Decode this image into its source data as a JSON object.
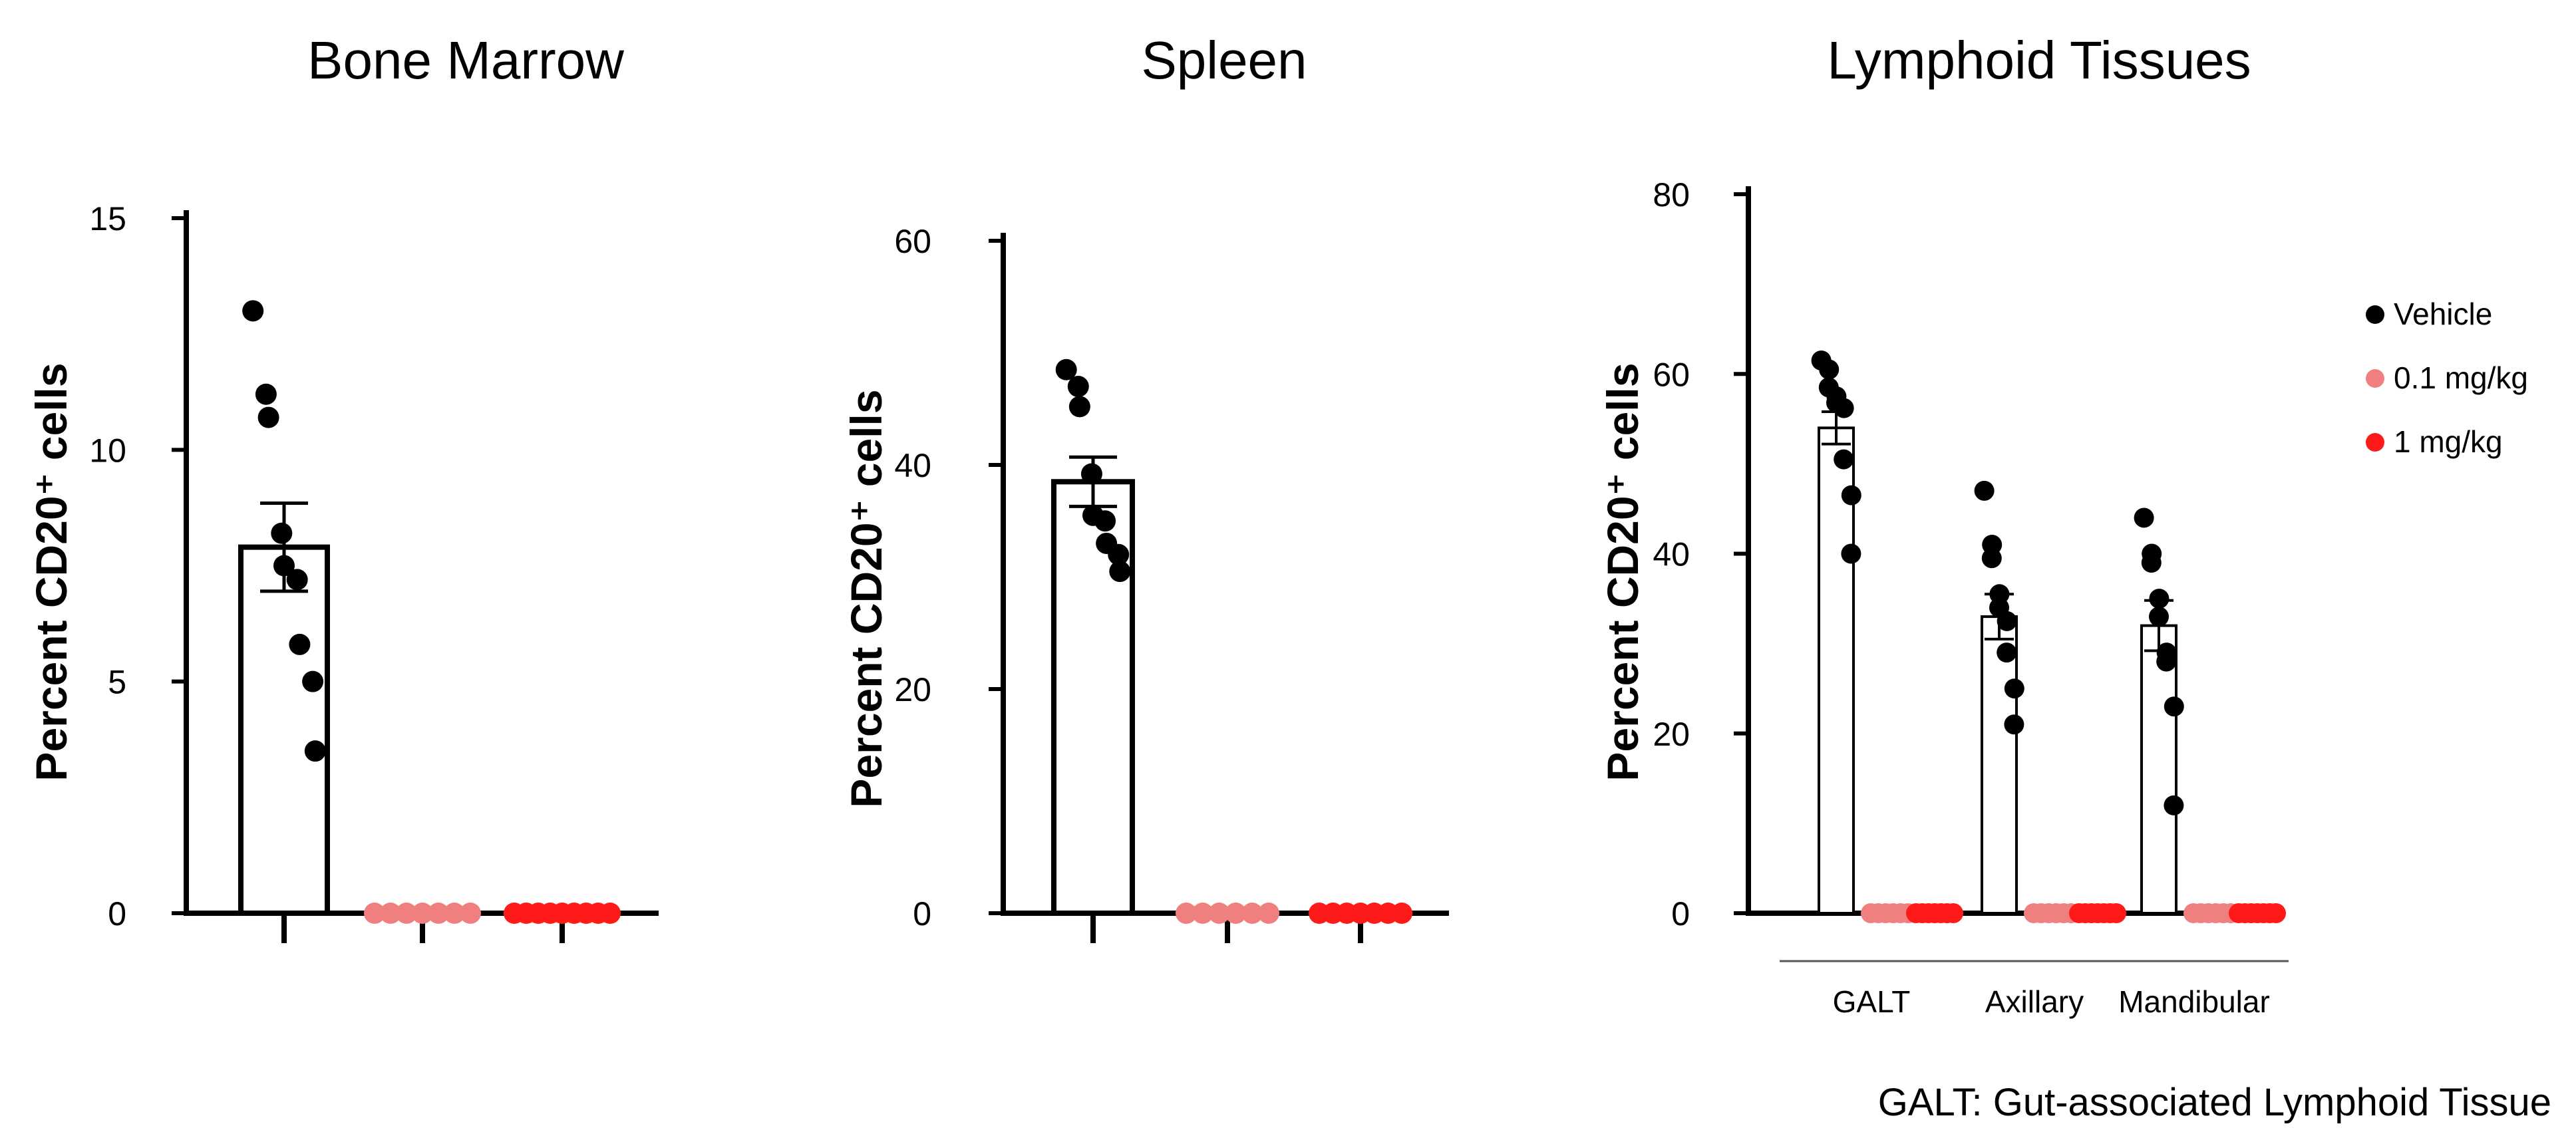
{
  "chart_data": [
    {
      "type": "bar",
      "title": "Bone Marrow",
      "ylabel": "Percent CD20⁺ cells",
      "ylim": [
        0,
        15
      ],
      "yticks": [
        0,
        5,
        10,
        15
      ],
      "ytick_labels": [
        "0",
        "5",
        "10",
        "15"
      ],
      "groups": [
        "Vehicle",
        "0.1 mg/kg",
        "1 mg/kg"
      ],
      "means": [
        7.9,
        0,
        0
      ],
      "sem": [
        0.95,
        0,
        0
      ],
      "points": [
        [
          13.0,
          11.2,
          10.7,
          8.2,
          7.5,
          7.2,
          5.8,
          5.0,
          3.5
        ],
        [
          0,
          0,
          0,
          0,
          0,
          0,
          0
        ],
        [
          0,
          0,
          0,
          0,
          0,
          0,
          0,
          0,
          0
        ]
      ]
    },
    {
      "type": "bar",
      "title": "Spleen",
      "ylabel": "Percent CD20⁺ cells",
      "ylim": [
        0,
        60
      ],
      "yticks": [
        0,
        20,
        40,
        60
      ],
      "ytick_labels": [
        "0",
        "20",
        "40",
        "60"
      ],
      "groups": [
        "Vehicle",
        "0.1 mg/kg",
        "1 mg/kg"
      ],
      "means": [
        38.5,
        0,
        0
      ],
      "sem": [
        2.2,
        0,
        0
      ],
      "points": [
        [
          48.5,
          47.0,
          45.2,
          39.2,
          35.5,
          35.0,
          33.0,
          32.0,
          30.5
        ],
        [
          0,
          0,
          0,
          0,
          0,
          0
        ],
        [
          0,
          0,
          0,
          0,
          0,
          0,
          0
        ]
      ]
    },
    {
      "type": "bar",
      "title": "Lymphoid Tissues",
      "ylabel": "Percent CD20⁺ cells",
      "ylim": [
        0,
        80
      ],
      "yticks": [
        0,
        20,
        40,
        60,
        80
      ],
      "ytick_labels": [
        "0",
        "20",
        "40",
        "60",
        "80"
      ],
      "categories": [
        "GALT",
        "Axillary",
        "Mandibular"
      ],
      "series": [
        {
          "name": "Vehicle",
          "color": "#000000",
          "means": [
            54,
            33,
            32
          ],
          "sem": [
            1.8,
            2.5,
            2.8
          ],
          "points": [
            [
              61.5,
              60.5,
              58.5,
              57.5,
              56.8,
              56.2,
              50.5,
              46.5,
              40.0
            ],
            [
              47.0,
              41.0,
              39.5,
              35.5,
              34.0,
              32.5,
              29.0,
              25.0,
              21.0
            ],
            [
              44.0,
              40.0,
              39.0,
              35.0,
              33.0,
              29.0,
              28.0,
              23.0,
              12.0
            ]
          ]
        },
        {
          "name": "0.1 mg/kg",
          "color": "#f08080",
          "means": [
            0,
            0,
            0
          ],
          "sem": [
            0,
            0,
            0
          ],
          "points": [
            [
              0,
              0,
              0,
              0,
              0,
              0
            ],
            [
              0,
              0,
              0,
              0,
              0,
              0
            ],
            [
              0,
              0,
              0,
              0,
              0,
              0
            ]
          ]
        },
        {
          "name": "1 mg/kg",
          "color": "#ff1a1a",
          "means": [
            0,
            0,
            0
          ],
          "sem": [
            0,
            0,
            0
          ],
          "points": [
            [
              0,
              0,
              0,
              0,
              0,
              0,
              0
            ],
            [
              0,
              0,
              0,
              0,
              0,
              0,
              0
            ],
            [
              0,
              0,
              0,
              0,
              0,
              0,
              0
            ]
          ]
        }
      ],
      "legend": [
        "Vehicle",
        "0.1 mg/kg",
        "1 mg/kg"
      ],
      "legend_position": "right"
    }
  ],
  "colors": {
    "vehicle": "#000000",
    "low_dose": "#f08080",
    "high_dose": "#ff1a1a"
  },
  "footnote": "GALT: Gut-associated Lymphoid Tissue"
}
